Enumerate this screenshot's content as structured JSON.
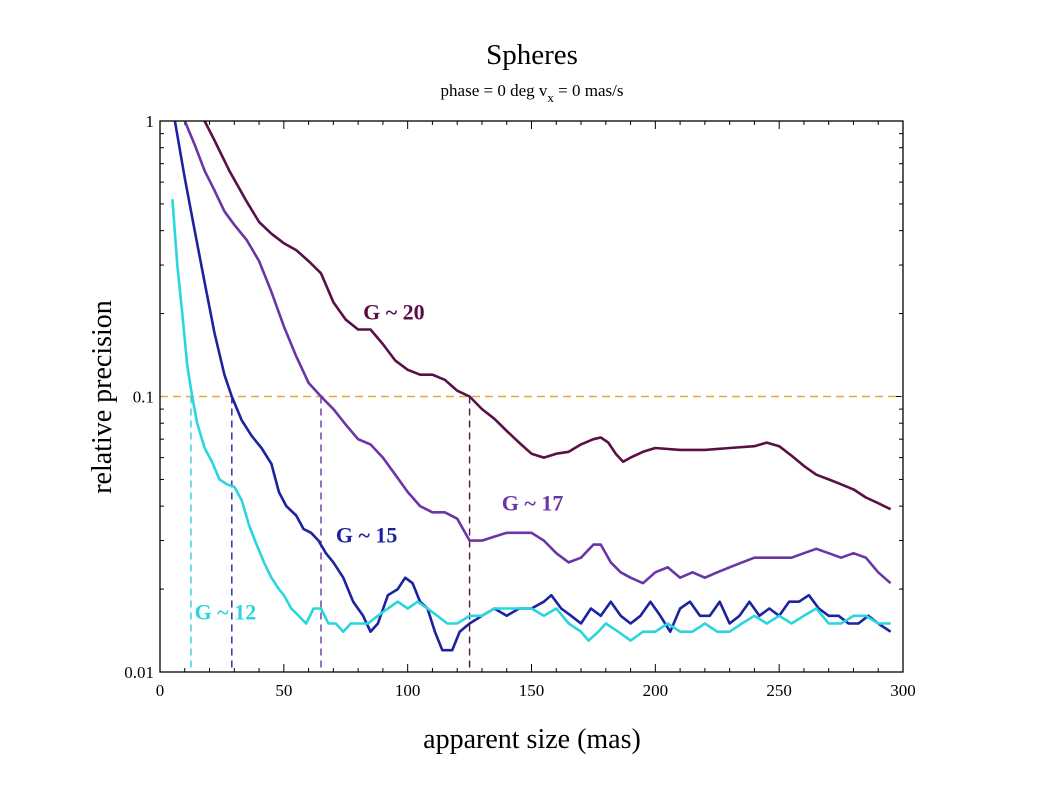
{
  "chart_data": {
    "type": "line",
    "title": "Spheres",
    "subtitle": {
      "prefix": "phase = 0 deg   v",
      "subscript": "x",
      "suffix": " = 0 mas/s"
    },
    "xlabel": "apparent size (mas)",
    "ylabel": "relative precision",
    "xlim": [
      0,
      300
    ],
    "ylim": [
      0.01,
      1
    ],
    "yscale": "log",
    "x_ticks": [
      {
        "value": 0,
        "label": "0"
      },
      {
        "value": 50,
        "label": "50"
      },
      {
        "value": 100,
        "label": "100"
      },
      {
        "value": 150,
        "label": "150"
      },
      {
        "value": 200,
        "label": "200"
      },
      {
        "value": 250,
        "label": "250"
      },
      {
        "value": 300,
        "label": "300"
      }
    ],
    "y_ticks": [
      {
        "value": 0.01,
        "label": "0.01"
      },
      {
        "value": 0.1,
        "label": "0.1"
      },
      {
        "value": 1,
        "label": "1"
      }
    ],
    "grid": false,
    "reference_line": {
      "y": 0.1,
      "color": "#e8a838",
      "style": "dashed"
    },
    "series": [
      {
        "name": "G ~ 20",
        "color": "#5a0f45",
        "crossing_x": 125,
        "label_pos": {
          "x": 82,
          "y": 0.19
        },
        "points": [
          [
            18,
            1.0
          ],
          [
            22,
            0.85
          ],
          [
            28,
            0.66
          ],
          [
            35,
            0.51
          ],
          [
            40,
            0.43
          ],
          [
            45,
            0.39
          ],
          [
            50,
            0.36
          ],
          [
            55,
            0.34
          ],
          [
            60,
            0.31
          ],
          [
            65,
            0.28
          ],
          [
            70,
            0.22
          ],
          [
            75,
            0.19
          ],
          [
            80,
            0.175
          ],
          [
            85,
            0.175
          ],
          [
            90,
            0.155
          ],
          [
            95,
            0.135
          ],
          [
            100,
            0.125
          ],
          [
            105,
            0.12
          ],
          [
            110,
            0.12
          ],
          [
            115,
            0.115
          ],
          [
            120,
            0.105
          ],
          [
            125,
            0.1
          ],
          [
            130,
            0.09
          ],
          [
            135,
            0.083
          ],
          [
            140,
            0.075
          ],
          [
            145,
            0.068
          ],
          [
            150,
            0.062
          ],
          [
            155,
            0.06
          ],
          [
            160,
            0.062
          ],
          [
            165,
            0.063
          ],
          [
            170,
            0.067
          ],
          [
            175,
            0.07
          ],
          [
            178,
            0.071
          ],
          [
            181,
            0.068
          ],
          [
            184,
            0.062
          ],
          [
            187,
            0.058
          ],
          [
            190,
            0.06
          ],
          [
            195,
            0.063
          ],
          [
            200,
            0.065
          ],
          [
            210,
            0.064
          ],
          [
            220,
            0.064
          ],
          [
            230,
            0.065
          ],
          [
            240,
            0.066
          ],
          [
            245,
            0.068
          ],
          [
            250,
            0.066
          ],
          [
            255,
            0.061
          ],
          [
            260,
            0.056
          ],
          [
            265,
            0.052
          ],
          [
            270,
            0.05
          ],
          [
            275,
            0.048
          ],
          [
            280,
            0.046
          ],
          [
            285,
            0.043
          ],
          [
            290,
            0.041
          ],
          [
            295,
            0.039
          ]
        ]
      },
      {
        "name": "G ~ 17",
        "color": "#6a35a6",
        "crossing_x": 65,
        "label_pos": {
          "x": 138,
          "y": 0.0385
        },
        "points": [
          [
            10,
            1.0
          ],
          [
            14,
            0.82
          ],
          [
            18,
            0.66
          ],
          [
            22,
            0.56
          ],
          [
            26,
            0.47
          ],
          [
            30,
            0.42
          ],
          [
            35,
            0.37
          ],
          [
            40,
            0.31
          ],
          [
            45,
            0.24
          ],
          [
            50,
            0.18
          ],
          [
            55,
            0.14
          ],
          [
            60,
            0.112
          ],
          [
            65,
            0.1
          ],
          [
            70,
            0.09
          ],
          [
            75,
            0.079
          ],
          [
            80,
            0.07
          ],
          [
            85,
            0.067
          ],
          [
            90,
            0.06
          ],
          [
            95,
            0.052
          ],
          [
            100,
            0.045
          ],
          [
            105,
            0.04
          ],
          [
            110,
            0.038
          ],
          [
            115,
            0.038
          ],
          [
            120,
            0.036
          ],
          [
            125,
            0.03
          ],
          [
            130,
            0.03
          ],
          [
            135,
            0.031
          ],
          [
            140,
            0.032
          ],
          [
            145,
            0.032
          ],
          [
            150,
            0.032
          ],
          [
            155,
            0.03
          ],
          [
            160,
            0.027
          ],
          [
            165,
            0.025
          ],
          [
            170,
            0.026
          ],
          [
            175,
            0.029
          ],
          [
            178,
            0.029
          ],
          [
            182,
            0.025
          ],
          [
            186,
            0.023
          ],
          [
            190,
            0.022
          ],
          [
            195,
            0.021
          ],
          [
            200,
            0.023
          ],
          [
            205,
            0.024
          ],
          [
            210,
            0.022
          ],
          [
            215,
            0.023
          ],
          [
            220,
            0.022
          ],
          [
            225,
            0.023
          ],
          [
            230,
            0.024
          ],
          [
            235,
            0.025
          ],
          [
            240,
            0.026
          ],
          [
            245,
            0.026
          ],
          [
            250,
            0.026
          ],
          [
            255,
            0.026
          ],
          [
            260,
            0.027
          ],
          [
            265,
            0.028
          ],
          [
            270,
            0.027
          ],
          [
            275,
            0.026
          ],
          [
            280,
            0.027
          ],
          [
            285,
            0.026
          ],
          [
            290,
            0.023
          ],
          [
            295,
            0.021
          ]
        ]
      },
      {
        "name": "G ~ 15",
        "color": "#1c22a0",
        "crossing_x": 29,
        "label_pos": {
          "x": 71,
          "y": 0.0295
        },
        "points": [
          [
            6,
            1.0
          ],
          [
            10,
            0.62
          ],
          [
            14,
            0.4
          ],
          [
            18,
            0.26
          ],
          [
            22,
            0.17
          ],
          [
            26,
            0.12
          ],
          [
            29,
            0.1
          ],
          [
            33,
            0.082
          ],
          [
            37,
            0.072
          ],
          [
            41,
            0.065
          ],
          [
            45,
            0.057
          ],
          [
            48,
            0.045
          ],
          [
            51,
            0.04
          ],
          [
            55,
            0.037
          ],
          [
            58,
            0.033
          ],
          [
            61,
            0.032
          ],
          [
            64,
            0.03
          ],
          [
            67,
            0.027
          ],
          [
            70,
            0.025
          ],
          [
            74,
            0.022
          ],
          [
            78,
            0.018
          ],
          [
            82,
            0.016
          ],
          [
            85,
            0.014
          ],
          [
            88,
            0.015
          ],
          [
            92,
            0.019
          ],
          [
            96,
            0.02
          ],
          [
            99,
            0.022
          ],
          [
            102,
            0.021
          ],
          [
            105,
            0.018
          ],
          [
            108,
            0.017
          ],
          [
            111,
            0.014
          ],
          [
            114,
            0.012
          ],
          [
            118,
            0.012
          ],
          [
            121,
            0.014
          ],
          [
            125,
            0.015
          ],
          [
            130,
            0.016
          ],
          [
            135,
            0.017
          ],
          [
            140,
            0.016
          ],
          [
            145,
            0.017
          ],
          [
            150,
            0.017
          ],
          [
            155,
            0.018
          ],
          [
            158,
            0.019
          ],
          [
            162,
            0.017
          ],
          [
            166,
            0.016
          ],
          [
            170,
            0.015
          ],
          [
            174,
            0.017
          ],
          [
            178,
            0.016
          ],
          [
            182,
            0.018
          ],
          [
            186,
            0.016
          ],
          [
            190,
            0.015
          ],
          [
            194,
            0.016
          ],
          [
            198,
            0.018
          ],
          [
            202,
            0.016
          ],
          [
            206,
            0.014
          ],
          [
            210,
            0.017
          ],
          [
            214,
            0.018
          ],
          [
            218,
            0.016
          ],
          [
            222,
            0.016
          ],
          [
            226,
            0.018
          ],
          [
            230,
            0.015
          ],
          [
            234,
            0.016
          ],
          [
            238,
            0.018
          ],
          [
            242,
            0.016
          ],
          [
            246,
            0.017
          ],
          [
            250,
            0.016
          ],
          [
            254,
            0.018
          ],
          [
            258,
            0.018
          ],
          [
            262,
            0.019
          ],
          [
            266,
            0.017
          ],
          [
            270,
            0.016
          ],
          [
            274,
            0.016
          ],
          [
            278,
            0.015
          ],
          [
            282,
            0.015
          ],
          [
            286,
            0.016
          ],
          [
            290,
            0.015
          ],
          [
            295,
            0.014
          ]
        ]
      },
      {
        "name": "G ~ 12",
        "color": "#2ad6de",
        "crossing_x": 12.5,
        "label_pos": {
          "x": 14,
          "y": 0.0155
        },
        "points": [
          [
            5,
            0.52
          ],
          [
            7,
            0.3
          ],
          [
            9,
            0.2
          ],
          [
            11,
            0.13
          ],
          [
            13,
            0.1
          ],
          [
            15,
            0.08
          ],
          [
            18,
            0.065
          ],
          [
            21,
            0.058
          ],
          [
            24,
            0.05
          ],
          [
            27,
            0.048
          ],
          [
            30,
            0.047
          ],
          [
            33,
            0.042
          ],
          [
            36,
            0.034
          ],
          [
            39,
            0.029
          ],
          [
            42,
            0.025
          ],
          [
            45,
            0.022
          ],
          [
            48,
            0.02
          ],
          [
            50,
            0.019
          ],
          [
            53,
            0.017
          ],
          [
            56,
            0.016
          ],
          [
            59,
            0.015
          ],
          [
            62,
            0.017
          ],
          [
            65,
            0.017
          ],
          [
            68,
            0.015
          ],
          [
            71,
            0.015
          ],
          [
            74,
            0.014
          ],
          [
            77,
            0.015
          ],
          [
            80,
            0.015
          ],
          [
            84,
            0.015
          ],
          [
            88,
            0.016
          ],
          [
            92,
            0.017
          ],
          [
            96,
            0.018
          ],
          [
            100,
            0.017
          ],
          [
            104,
            0.018
          ],
          [
            108,
            0.017
          ],
          [
            112,
            0.016
          ],
          [
            116,
            0.015
          ],
          [
            120,
            0.015
          ],
          [
            125,
            0.016
          ],
          [
            130,
            0.016
          ],
          [
            135,
            0.017
          ],
          [
            140,
            0.017
          ],
          [
            145,
            0.017
          ],
          [
            150,
            0.017
          ],
          [
            155,
            0.016
          ],
          [
            160,
            0.017
          ],
          [
            165,
            0.015
          ],
          [
            170,
            0.014
          ],
          [
            173,
            0.013
          ],
          [
            177,
            0.014
          ],
          [
            180,
            0.015
          ],
          [
            185,
            0.014
          ],
          [
            190,
            0.013
          ],
          [
            195,
            0.014
          ],
          [
            200,
            0.014
          ],
          [
            205,
            0.015
          ],
          [
            210,
            0.014
          ],
          [
            215,
            0.014
          ],
          [
            220,
            0.015
          ],
          [
            225,
            0.014
          ],
          [
            230,
            0.014
          ],
          [
            235,
            0.015
          ],
          [
            240,
            0.016
          ],
          [
            245,
            0.015
          ],
          [
            250,
            0.016
          ],
          [
            255,
            0.015
          ],
          [
            260,
            0.016
          ],
          [
            265,
            0.017
          ],
          [
            270,
            0.015
          ],
          [
            275,
            0.015
          ],
          [
            280,
            0.016
          ],
          [
            285,
            0.016
          ],
          [
            290,
            0.015
          ],
          [
            295,
            0.015
          ]
        ]
      }
    ]
  }
}
